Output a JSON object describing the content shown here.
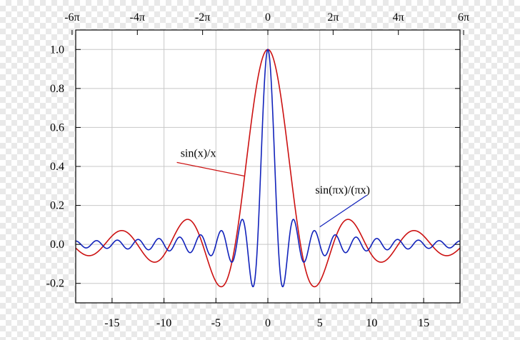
{
  "chart_data": {
    "type": "line",
    "title": "",
    "xlabel": "",
    "ylabel": "",
    "xlim": [
      -18.5,
      18.5
    ],
    "ylim": [
      -0.3,
      1.1
    ],
    "grid": true,
    "x_ticks_bottom": [
      {
        "value": -15,
        "label": "-15"
      },
      {
        "value": -10,
        "label": "-10"
      },
      {
        "value": -5,
        "label": "-5"
      },
      {
        "value": 0,
        "label": "0"
      },
      {
        "value": 5,
        "label": "5"
      },
      {
        "value": 10,
        "label": "10"
      },
      {
        "value": 15,
        "label": "15"
      }
    ],
    "x_ticks_top": [
      {
        "value": -18.8496,
        "label": "-6π"
      },
      {
        "value": -12.5664,
        "label": "-4π"
      },
      {
        "value": -6.2832,
        "label": "-2π"
      },
      {
        "value": 0,
        "label": "0"
      },
      {
        "value": 6.2832,
        "label": "2π"
      },
      {
        "value": 12.5664,
        "label": "4π"
      },
      {
        "value": 18.8496,
        "label": "6π"
      }
    ],
    "y_ticks": [
      {
        "value": -0.2,
        "label": "-0.2"
      },
      {
        "value": 0.0,
        "label": "0.0"
      },
      {
        "value": 0.2,
        "label": "0.2"
      },
      {
        "value": 0.4,
        "label": "0.4"
      },
      {
        "value": 0.6,
        "label": "0.6"
      },
      {
        "value": 0.8,
        "label": "0.8"
      },
      {
        "value": 1.0,
        "label": "1.0"
      }
    ],
    "series": [
      {
        "name": "sin(x)/x",
        "function": "sinc_unnormalized",
        "color": "#cc1111",
        "annotation": {
          "text": "sin(x)/x",
          "x": -6.7,
          "y": 0.45,
          "arrow_to": {
            "x": -2.2,
            "y": 0.35
          }
        }
      },
      {
        "name": "sin(πx)/(πx)",
        "function": "sinc_normalized",
        "color": "#1122bb",
        "annotation": {
          "text": "sin(πx)/(πx)",
          "x": 7.2,
          "y": 0.26,
          "arrow_to": {
            "x": 5.0,
            "y": 0.09
          }
        }
      }
    ]
  }
}
